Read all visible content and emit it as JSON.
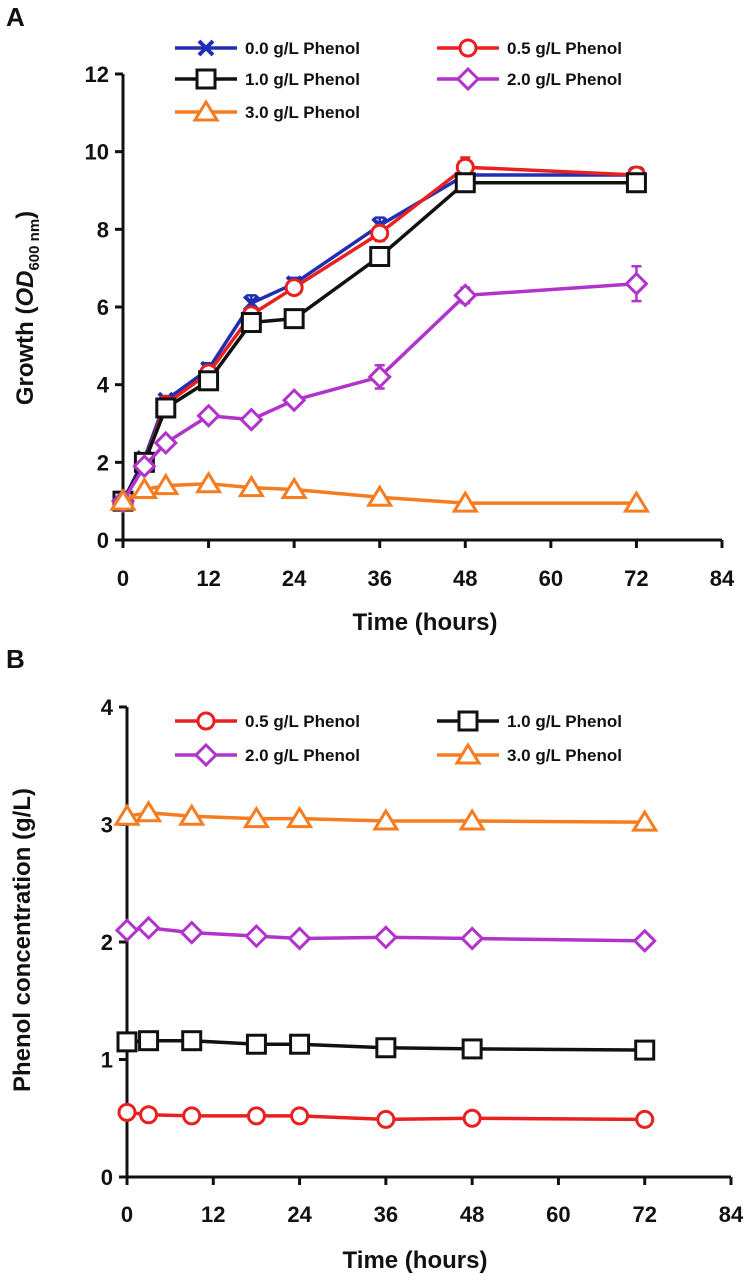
{
  "chart_data": [
    {
      "panel": "A",
      "type": "line",
      "xlabel": "Time (hours)",
      "ylabel": {
        "prefix": "Growth (",
        "italic": "OD",
        "subscript": "600 nm",
        "suffix": ")"
      },
      "xlim": [
        0,
        84
      ],
      "ylim": [
        0,
        12
      ],
      "xticks": [
        0,
        12,
        24,
        36,
        48,
        60,
        72,
        84
      ],
      "yticks": [
        0,
        2,
        4,
        6,
        8,
        10,
        12
      ],
      "legend_position": "top",
      "series": [
        {
          "name": "0.0 g/L Phenol",
          "color": "#1f2eb4",
          "marker": "x",
          "x": [
            0,
            3,
            6,
            12,
            18,
            24,
            36,
            48,
            72
          ],
          "y": [
            1.0,
            2.1,
            3.6,
            4.4,
            6.1,
            6.6,
            8.1,
            9.4,
            9.4
          ],
          "err": [
            0.1,
            0.1,
            0.1,
            0.15,
            0.2,
            0.15,
            0.2,
            0.2,
            0.15
          ]
        },
        {
          "name": "0.5 g/L Phenol",
          "color": "#e8201f",
          "marker": "circle",
          "x": [
            0,
            3,
            6,
            12,
            18,
            24,
            36,
            48,
            72
          ],
          "y": [
            1.0,
            2.0,
            3.5,
            4.3,
            5.8,
            6.5,
            7.9,
            9.6,
            9.4
          ],
          "err": [
            0.1,
            0.1,
            0.1,
            0.15,
            0.15,
            0.15,
            0.2,
            0.25,
            0.2
          ]
        },
        {
          "name": "1.0 g/L Phenol",
          "color": "#111111",
          "marker": "square",
          "x": [
            0,
            3,
            6,
            12,
            18,
            24,
            36,
            48,
            72
          ],
          "y": [
            1.0,
            2.0,
            3.4,
            4.1,
            5.6,
            5.7,
            7.3,
            9.2,
            9.2
          ],
          "err": [
            0.1,
            0.1,
            0.1,
            0.15,
            0.15,
            0.1,
            0.2,
            0.15,
            0.15
          ]
        },
        {
          "name": "2.0 g/L Phenol",
          "color": "#b233cc",
          "marker": "diamond",
          "x": [
            0,
            3,
            6,
            12,
            18,
            24,
            36,
            48,
            72
          ],
          "y": [
            1.0,
            1.9,
            2.5,
            3.2,
            3.1,
            3.6,
            4.2,
            6.3,
            6.6
          ],
          "err": [
            0.1,
            0.1,
            0.1,
            0.1,
            0.1,
            0.1,
            0.3,
            0.2,
            0.45
          ]
        },
        {
          "name": "3.0 g/L Phenol",
          "color": "#f57c20",
          "marker": "triangle",
          "x": [
            0,
            3,
            6,
            12,
            18,
            24,
            36,
            48,
            72
          ],
          "y": [
            1.0,
            1.3,
            1.4,
            1.45,
            1.35,
            1.3,
            1.1,
            0.95,
            0.95
          ],
          "err": [
            0.05,
            0.05,
            0.05,
            0.05,
            0.05,
            0.05,
            0.05,
            0.05,
            0.05
          ]
        }
      ]
    },
    {
      "panel": "B",
      "type": "line",
      "xlabel": "Time (hours)",
      "ylabel": {
        "prefix": "Phenol concentration (g/L)"
      },
      "xlim": [
        0,
        84
      ],
      "ylim": [
        0,
        4
      ],
      "xticks": [
        0,
        12,
        24,
        36,
        48,
        60,
        72,
        84
      ],
      "yticks": [
        0,
        1,
        2,
        3,
        4
      ],
      "legend_position": "top",
      "series": [
        {
          "name": "0.5  g/L Phenol",
          "color": "#e8201f",
          "marker": "circle",
          "x": [
            0,
            3,
            9,
            18,
            24,
            36,
            48,
            72
          ],
          "y": [
            0.55,
            0.53,
            0.52,
            0.52,
            0.52,
            0.49,
            0.5,
            0.49
          ]
        },
        {
          "name": "1.0  g/L Phenol",
          "color": "#111111",
          "marker": "square",
          "x": [
            0,
            3,
            9,
            18,
            24,
            36,
            48,
            72
          ],
          "y": [
            1.15,
            1.16,
            1.16,
            1.13,
            1.13,
            1.1,
            1.09,
            1.08
          ]
        },
        {
          "name": "2.0  g/L Phenol",
          "color": "#b233cc",
          "marker": "diamond",
          "x": [
            0,
            3,
            9,
            18,
            24,
            36,
            48,
            72
          ],
          "y": [
            2.1,
            2.12,
            2.08,
            2.05,
            2.03,
            2.04,
            2.03,
            2.01
          ]
        },
        {
          "name": "3.0  g/L Phenol",
          "color": "#f57c20",
          "marker": "triangle",
          "x": [
            0,
            3,
            9,
            18,
            24,
            36,
            48,
            72
          ],
          "y": [
            3.07,
            3.1,
            3.07,
            3.05,
            3.05,
            3.03,
            3.03,
            3.02
          ]
        }
      ]
    }
  ]
}
